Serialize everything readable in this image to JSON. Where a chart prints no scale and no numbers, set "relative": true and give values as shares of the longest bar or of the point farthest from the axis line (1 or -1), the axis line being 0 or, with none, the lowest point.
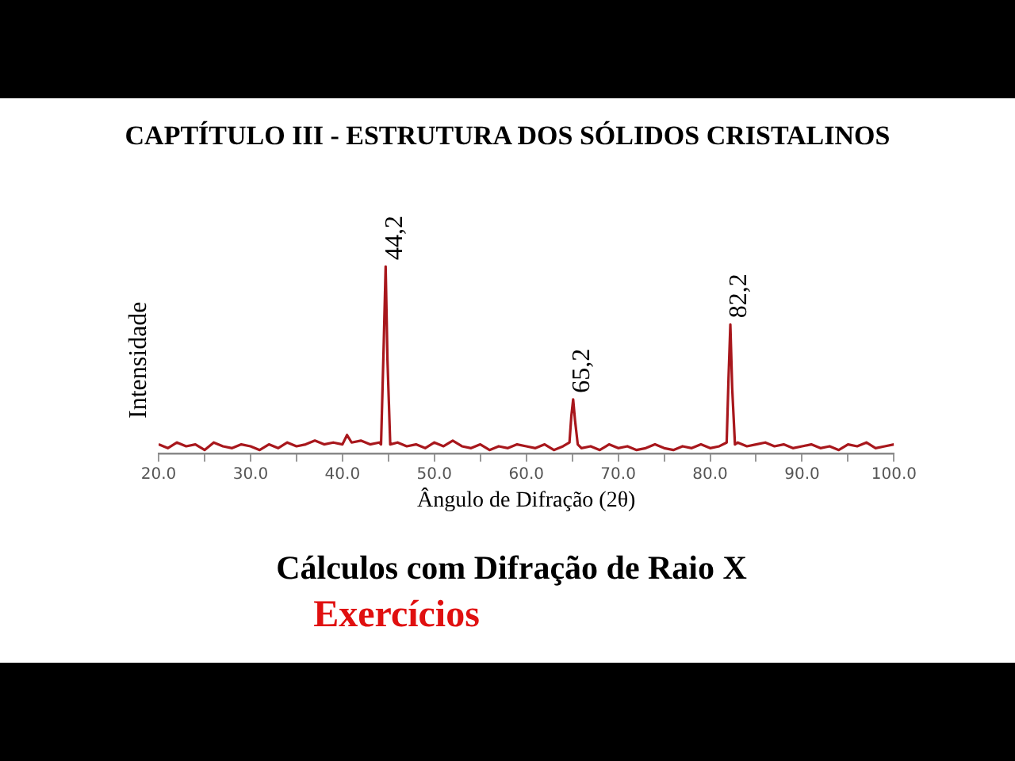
{
  "chart_data": {
    "type": "line",
    "title": "CAPTÍTULO III - ESTRUTURA DOS SÓLIDOS CRISTALINOS",
    "xlabel": "Ângulo de Difração (2θ)",
    "ylabel": "Intensidade",
    "relative": true,
    "marker": "none",
    "grid": false,
    "legend": false,
    "xlim": [
      20,
      100
    ],
    "xticks": [
      {
        "value": 20,
        "label": "20.0"
      },
      {
        "value": 25,
        "label": null
      },
      {
        "value": 30,
        "label": "30.0"
      },
      {
        "value": 35,
        "label": null
      },
      {
        "value": 40,
        "label": "40.0"
      },
      {
        "value": 45,
        "label": null
      },
      {
        "value": 50,
        "label": "50.0"
      },
      {
        "value": 55,
        "label": null
      },
      {
        "value": 60,
        "label": "60.0"
      },
      {
        "value": 65,
        "label": null
      },
      {
        "value": 70,
        "label": "70.0"
      },
      {
        "value": 75,
        "label": null
      },
      {
        "value": 80,
        "label": "80.0"
      },
      {
        "value": 85,
        "label": null
      },
      {
        "value": 90,
        "label": "90.0"
      },
      {
        "value": 95,
        "label": null
      },
      {
        "value": 100,
        "label": "100.0"
      }
    ],
    "series": [
      {
        "color": "#a8171c",
        "x": [
          20,
          21,
          22,
          23,
          24,
          25,
          26,
          27,
          28,
          29,
          30,
          31,
          32,
          33,
          34,
          35,
          36,
          37,
          38,
          39,
          40,
          40.5,
          41,
          42,
          43,
          44,
          44.2,
          44.5,
          44.7,
          44.9,
          45.2,
          46,
          47,
          48,
          49,
          50,
          51,
          52,
          53,
          54,
          55,
          56,
          57,
          58,
          59,
          60,
          61,
          62,
          63,
          64,
          64.7,
          64.9,
          65.1,
          65.3,
          65.6,
          66,
          67,
          68,
          69,
          70,
          71,
          72,
          73,
          74,
          75,
          76,
          77,
          78,
          79,
          80,
          81,
          81.8,
          82,
          82.2,
          82.4,
          82.7,
          83,
          84,
          85,
          86,
          87,
          88,
          89,
          90,
          91,
          92,
          93,
          94,
          95,
          96,
          97,
          98,
          99,
          100
        ],
        "values": [
          0.05,
          0.03,
          0.06,
          0.04,
          0.05,
          0.02,
          0.06,
          0.04,
          0.03,
          0.05,
          0.04,
          0.02,
          0.05,
          0.03,
          0.06,
          0.04,
          0.05,
          0.07,
          0.05,
          0.06,
          0.05,
          0.1,
          0.06,
          0.07,
          0.05,
          0.06,
          0.05,
          0.6,
          1,
          0.5,
          0.05,
          0.06,
          0.04,
          0.05,
          0.03,
          0.06,
          0.04,
          0.07,
          0.04,
          0.03,
          0.05,
          0.02,
          0.04,
          0.03,
          0.05,
          0.04,
          0.03,
          0.05,
          0.02,
          0.04,
          0.06,
          0.2,
          0.29,
          0.18,
          0.05,
          0.03,
          0.04,
          0.02,
          0.05,
          0.03,
          0.04,
          0.02,
          0.03,
          0.05,
          0.03,
          0.02,
          0.04,
          0.03,
          0.05,
          0.03,
          0.04,
          0.06,
          0.4,
          0.69,
          0.35,
          0.05,
          0.06,
          0.04,
          0.05,
          0.06,
          0.04,
          0.05,
          0.03,
          0.04,
          0.05,
          0.03,
          0.04,
          0.02,
          0.05,
          0.04,
          0.06,
          0.03,
          0.04,
          0.05
        ]
      }
    ],
    "annotations": [
      {
        "text": "44,2",
        "x": 44.7,
        "y": 1
      },
      {
        "text": "65,2",
        "x": 65.1,
        "y": 0.29
      },
      {
        "text": "82,2",
        "x": 82.2,
        "y": 0.69
      },
      "Cálculos com Difração de Raio X",
      "Exercícios"
    ]
  }
}
